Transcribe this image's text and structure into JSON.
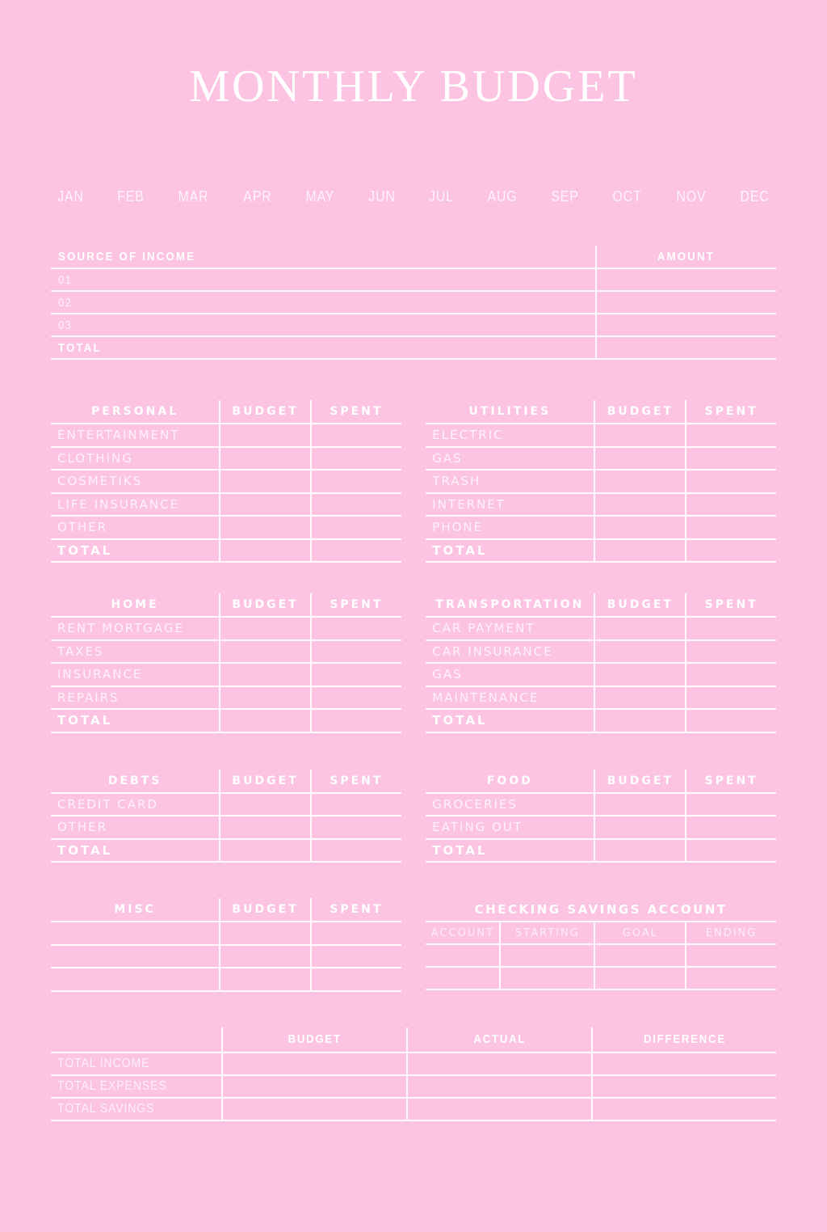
{
  "page": {
    "title": "MONTHLY BUDGET"
  },
  "months": [
    "JAN",
    "FEB",
    "MAR",
    "APR",
    "MAY",
    "JUN",
    "JUL",
    "AUG",
    "SEP",
    "OCT",
    "NOV",
    "DEC"
  ],
  "income_table": {
    "source_header": "SOURCE OF INCOME",
    "amount_header": "AMOUNT",
    "rows": [
      "01",
      "02",
      "03"
    ],
    "total_label": "TOTAL"
  },
  "column_headers": {
    "budget": "BUDGET",
    "spent": "SPENT"
  },
  "sections": [
    {
      "title": "PERSONAL",
      "rows": [
        "ENTERTAINMENT",
        "CLOTHING",
        "COSMETIKS",
        "LIFE INSURANCE",
        "OTHER"
      ],
      "total_label": "TOTAL"
    },
    {
      "title": "UTILITIES",
      "rows": [
        "ELECTRIC",
        "GAS",
        "TRASH",
        "INTERNET",
        "PHONE"
      ],
      "total_label": "TOTAL"
    },
    {
      "title": "HOME",
      "rows": [
        "RENT MORTGAGE",
        "TAXES",
        "INSURANCE",
        "REPAIRS"
      ],
      "total_label": "TOTAL"
    },
    {
      "title": "TRANSPORTATION",
      "rows": [
        "CAR PAYMENT",
        "CAR INSURANCE",
        "GAS",
        "MAINTENANCE"
      ],
      "total_label": "TOTAL"
    },
    {
      "title": "DEBTS",
      "rows": [
        "CREDIT CARD",
        "OTHER"
      ],
      "total_label": "TOTAL"
    },
    {
      "title": "FOOD",
      "rows": [
        "GROCERIES",
        "EATING OUT"
      ],
      "total_label": "TOTAL"
    },
    {
      "title": "MISC",
      "rows": [
        "",
        "",
        ""
      ]
    }
  ],
  "checking_table": {
    "title": "CHECKING SAVINGS ACCOUNT",
    "columns": [
      "ACCOUNT",
      "STARTING",
      "GOAL",
      "ENDING"
    ]
  },
  "summary_table": {
    "columns": [
      "BUDGET",
      "ACTUAL",
      "DIFFERENCE"
    ],
    "rows": [
      "TOTAL INCOME",
      "TOTAL EXPENSES",
      "TOTAL SAVINGS"
    ]
  },
  "colors": {
    "background": "#fdc3e2",
    "line": "#ffffff",
    "text": "#ffffff"
  }
}
